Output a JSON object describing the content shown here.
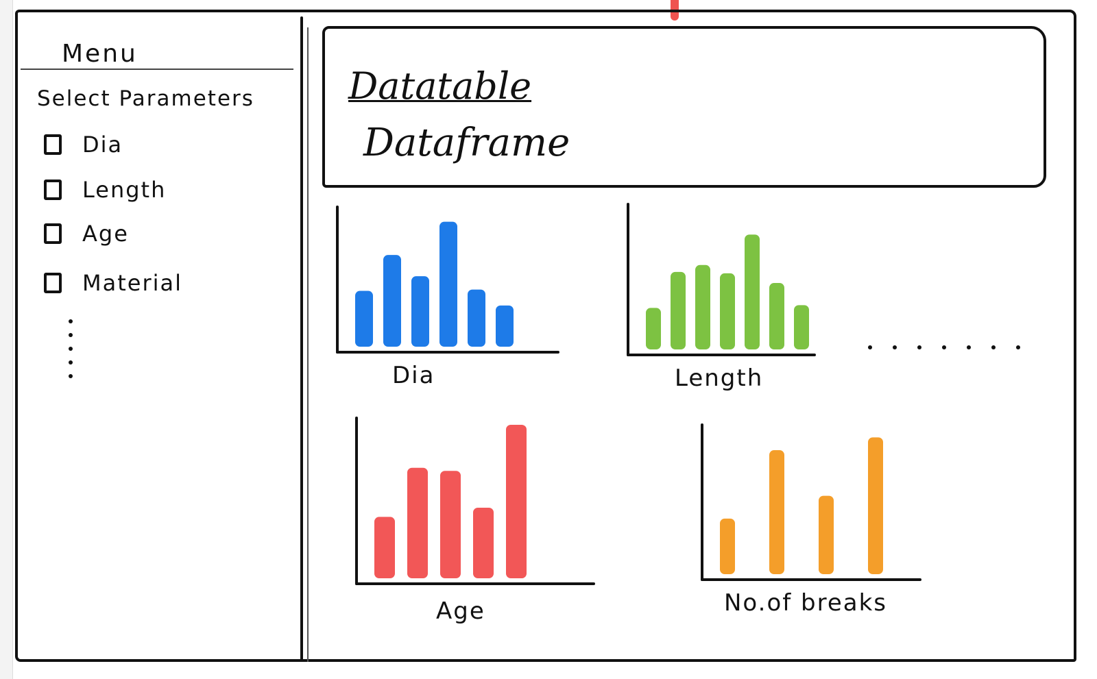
{
  "sidebar": {
    "menu_title": "Menu",
    "params_title": "Select Parameters",
    "params": [
      "Dia",
      "Length",
      "Age",
      "Material"
    ],
    "more_indicator": "⋮"
  },
  "main": {
    "data_table": {
      "line1": "Datatable",
      "line2": "Dataframe"
    },
    "more_charts_indicator": "......"
  },
  "chart_data": [
    {
      "type": "bar",
      "title": "Dia",
      "color": "#1e7be8",
      "values": [
        42,
        69,
        53,
        94,
        43,
        31
      ],
      "ylim": [
        0,
        100
      ]
    },
    {
      "type": "bar",
      "title": "Length",
      "color": "#7dc242",
      "values": [
        30,
        56,
        61,
        55,
        83,
        48,
        32
      ],
      "ylim": [
        0,
        100
      ]
    },
    {
      "type": "bar",
      "title": "Age",
      "color": "#f25757",
      "values": [
        40,
        72,
        70,
        46,
        100
      ],
      "ylim": [
        0,
        100
      ]
    },
    {
      "type": "bar",
      "title": "No.of breaks",
      "color": "#f49e2a",
      "values": [
        39,
        87,
        55,
        96
      ],
      "ylim": [
        0,
        100
      ]
    }
  ]
}
